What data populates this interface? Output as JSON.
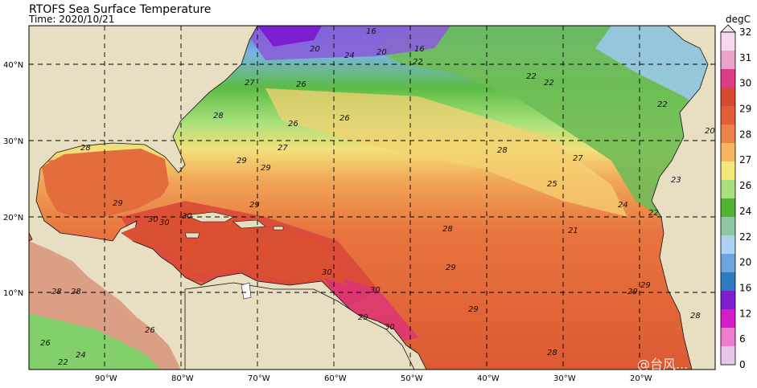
{
  "header": {
    "title": "RTOFS Sea Surface Temperature",
    "time": "Time: 2020/10/21"
  },
  "map": {
    "lat_labels": [
      "40°N",
      "30°N",
      "20°N",
      "10°N"
    ],
    "lon_labels": [
      "90°W",
      "80°W",
      "70°W",
      "60°W",
      "50°W",
      "40°W",
      "30°W",
      "20°W"
    ],
    "land_color": "#e8dfc2",
    "gridline": "dashed"
  },
  "colorbar": {
    "units": "degC",
    "tick_labels": [
      "32",
      "31",
      "30",
      "29",
      "28",
      "27",
      "26",
      "24",
      "22",
      "20",
      "16",
      "12",
      "6",
      "0"
    ],
    "colors": [
      "#f7d8ee",
      "#eca3cb",
      "#dc3c88",
      "#d84a30",
      "#e15e36",
      "#ec8245",
      "#f6b660",
      "#f6e77a",
      "#a7e17b",
      "#4fb530",
      "#8fc7a3",
      "#aed2f4",
      "#6ea4de",
      "#2d7bc0",
      "#7c1fd0",
      "#d51cc6",
      "#f07ccf",
      "#e9c5ea"
    ]
  },
  "contour_labels": [
    "16",
    "20",
    "24",
    "22",
    "26",
    "27",
    "28",
    "29",
    "30",
    "25",
    "21",
    "23"
  ],
  "watermark": "@台风..."
}
